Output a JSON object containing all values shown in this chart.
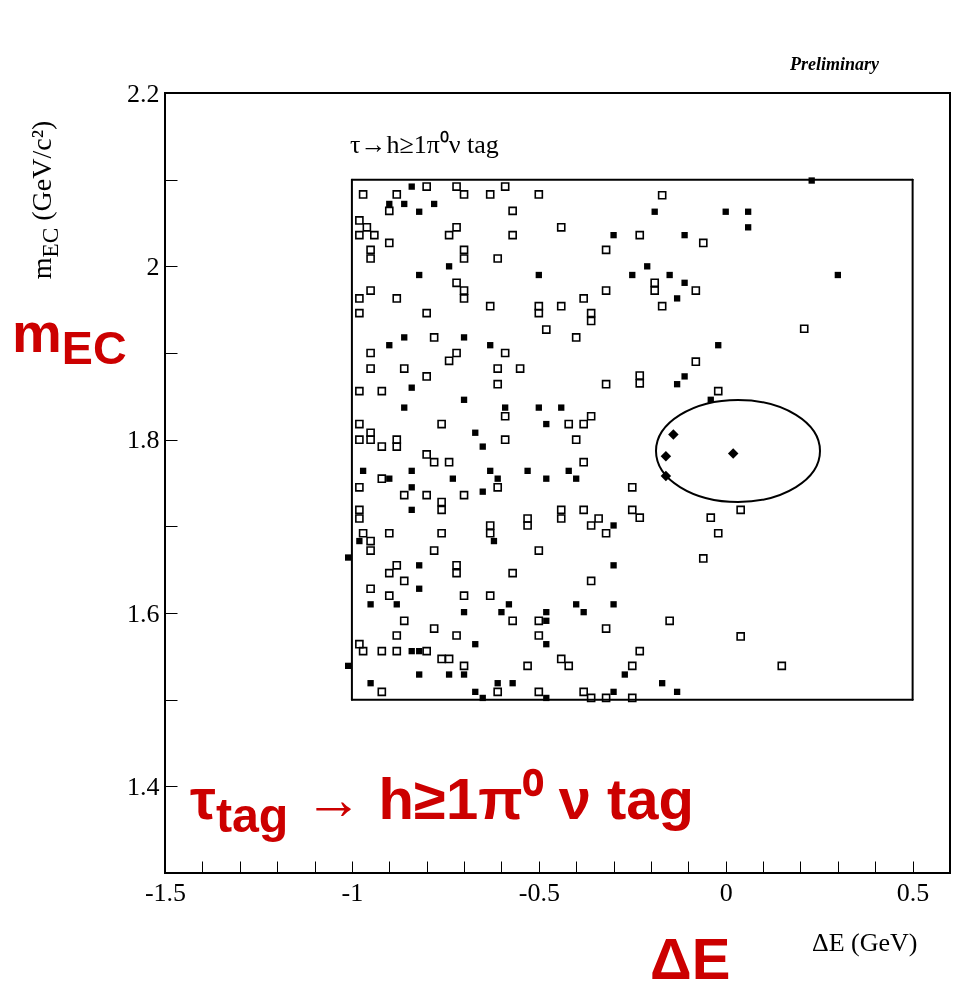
{
  "chart_data": {
    "type": "scatter",
    "xlabel": "ΔE (GeV)",
    "ylabel": "m$_{EC}$ (GeV/c²)",
    "annotations": [
      "τ→h≥1π⁰ν tag",
      "Preliminary",
      "τ$_{tag}$ → h≥1π⁰ ν tag",
      "m$_{EC}$",
      "ΔE"
    ],
    "xlim": [
      -1.5,
      0.6
    ],
    "ylim": [
      1.3,
      2.2
    ],
    "xticks": [
      -1.5,
      {
        "value": -1.4,
        "label": null
      },
      {
        "value": -1.3,
        "label": null
      },
      {
        "value": -1.2,
        "label": null
      },
      {
        "value": -1.1,
        "label": null
      },
      -1,
      {
        "value": -0.9,
        "label": null
      },
      {
        "value": -0.8,
        "label": null
      },
      {
        "value": -0.7,
        "label": null
      },
      {
        "value": -0.6,
        "label": null
      },
      -0.5,
      {
        "value": -0.4,
        "label": null
      },
      {
        "value": -0.3,
        "label": null
      },
      {
        "value": -0.2,
        "label": null
      },
      {
        "value": -0.1,
        "label": null
      },
      0,
      {
        "value": 0.1,
        "label": null
      },
      {
        "value": 0.2,
        "label": null
      },
      {
        "value": 0.3,
        "label": null
      },
      {
        "value": 0.4,
        "label": null
      },
      0.5
    ],
    "yticks": [
      {
        "value": 1.3,
        "label": null
      },
      1.4,
      {
        "value": 1.5,
        "label": null
      },
      1.6,
      {
        "value": 1.7,
        "label": null
      },
      1.8,
      {
        "value": 1.9,
        "label": null
      },
      2,
      {
        "value": 2.1,
        "label": null
      },
      2.2
    ],
    "series": [
      {
        "color": "#000000",
        "marker": "square",
        "x": [
          -0.97,
          -0.88,
          -0.8,
          -0.72,
          -0.7,
          -0.63,
          -0.59,
          -0.5,
          -0.9,
          -0.57,
          -0.98,
          -0.96,
          -0.98,
          -0.94,
          -0.9,
          -0.74,
          -0.72,
          -0.57,
          -0.44,
          -0.32,
          -0.95,
          -0.95,
          -0.7,
          -0.7,
          -0.61,
          -0.72,
          -0.7,
          -0.7,
          -0.95,
          -0.98,
          -0.88,
          -0.63,
          -0.5,
          -0.5,
          -0.44,
          -0.38,
          -0.32,
          -0.36,
          -0.36,
          -0.98,
          -0.8,
          -0.48,
          -0.78,
          -0.4,
          -0.95,
          -0.72,
          -0.74,
          -0.59,
          -0.95,
          -0.86,
          -0.61,
          -0.55,
          -0.8,
          -0.61,
          -0.32,
          -0.98,
          -0.92,
          -0.59,
          -0.36,
          -0.38,
          -0.42,
          -0.98,
          -0.76,
          -0.95,
          -0.17,
          -0.23,
          -0.06,
          -0.19,
          -0.19,
          -0.08,
          -0.17,
          0.21,
          -0.08,
          -0.23,
          -0.23,
          -0.02,
          -0.98,
          -0.95,
          -0.92,
          -0.88,
          -0.88,
          -0.59,
          -0.4,
          -0.8,
          -0.78,
          -0.74,
          -0.38,
          -0.92,
          -0.98,
          -0.86,
          -0.8,
          -0.7,
          -0.61,
          -0.76,
          -0.76,
          -0.98,
          -0.98,
          -0.53,
          -0.53,
          -0.44,
          -0.44,
          -0.38,
          -0.34,
          -0.36,
          -0.97,
          -0.9,
          -0.76,
          -0.63,
          -0.63,
          -0.32,
          -0.95,
          -0.95,
          -0.78,
          -0.5,
          -0.88,
          -0.9,
          -0.72,
          -0.72,
          -0.57,
          -0.86,
          -0.36,
          -0.95,
          -0.9,
          -0.7,
          -0.63,
          -0.86,
          -0.57,
          -0.5,
          -0.88,
          -0.78,
          -0.72,
          -0.5,
          -0.32,
          -0.98,
          -0.97,
          -0.92,
          -0.88,
          -0.8,
          -0.76,
          -0.74,
          -0.44,
          -0.42,
          -0.7,
          -0.53,
          -0.92,
          -0.61,
          -0.5,
          -0.38,
          -0.36,
          -0.32,
          -0.25,
          -0.25,
          -0.25,
          -0.23,
          -0.04,
          0.04,
          -0.02,
          -0.06,
          -0.15,
          0.04,
          -0.23,
          0.15,
          -0.25
        ],
        "values": [
          2.083,
          2.083,
          2.092,
          2.092,
          2.083,
          2.083,
          2.092,
          2.083,
          2.064,
          2.064,
          2.053,
          2.045,
          2.036,
          2.036,
          2.027,
          2.036,
          2.045,
          2.036,
          2.045,
          2.019,
          2.019,
          2.009,
          2.019,
          2.009,
          2.009,
          1.981,
          1.972,
          1.963,
          1.972,
          1.963,
          1.963,
          1.954,
          1.954,
          1.946,
          1.954,
          1.963,
          1.972,
          1.946,
          1.937,
          1.946,
          1.946,
          1.927,
          1.918,
          1.918,
          1.9,
          1.9,
          1.891,
          1.9,
          1.882,
          1.882,
          1.882,
          1.882,
          1.873,
          1.864,
          1.864,
          1.856,
          1.856,
          1.827,
          1.827,
          1.818,
          1.818,
          1.818,
          1.818,
          1.808,
          2.082,
          2.036,
          2.027,
          1.981,
          1.972,
          1.972,
          1.954,
          1.928,
          1.89,
          1.874,
          1.865,
          1.856,
          1.8,
          1.8,
          1.792,
          1.8,
          1.792,
          1.8,
          1.8,
          1.783,
          1.774,
          1.774,
          1.774,
          1.755,
          1.745,
          1.736,
          1.736,
          1.736,
          1.745,
          1.728,
          1.719,
          1.719,
          1.709,
          1.709,
          1.701,
          1.719,
          1.709,
          1.719,
          1.709,
          1.701,
          1.692,
          1.692,
          1.692,
          1.701,
          1.692,
          1.692,
          1.683,
          1.672,
          1.672,
          1.672,
          1.655,
          1.646,
          1.655,
          1.646,
          1.646,
          1.637,
          1.637,
          1.628,
          1.62,
          1.62,
          1.62,
          1.591,
          1.591,
          1.591,
          1.574,
          1.582,
          1.574,
          1.574,
          1.582,
          1.564,
          1.556,
          1.556,
          1.556,
          1.556,
          1.547,
          1.547,
          1.547,
          1.539,
          1.539,
          1.539,
          1.509,
          1.509,
          1.509,
          1.509,
          1.502,
          1.502,
          1.502,
          1.745,
          1.719,
          1.71,
          1.71,
          1.719,
          1.692,
          1.663,
          1.591,
          1.573,
          1.556,
          1.539,
          1.539
        ]
      },
      {
        "color": "#000000",
        "marker": "square",
        "x": [
          -0.84,
          -0.9,
          -0.86,
          -0.78,
          -0.82,
          -0.3,
          -0.74,
          -0.82,
          -0.5,
          -0.86,
          -0.7,
          -0.9,
          -0.63,
          -0.84,
          -0.7,
          -0.86,
          -0.59,
          -0.5,
          -0.44,
          -0.48,
          -0.67,
          0.23,
          -0.19,
          0.0,
          0.06,
          0.06,
          -0.11,
          -0.21,
          -0.25,
          -0.15,
          0.3,
          -0.11,
          -0.13,
          -0.02,
          -0.11,
          -0.13,
          -0.04,
          -0.65,
          -0.97,
          -0.84,
          -0.63,
          -0.53,
          -0.42,
          -0.9,
          -0.73,
          -0.61,
          -0.48,
          -0.4,
          -0.84,
          -0.65,
          -0.84,
          -0.3,
          -0.98,
          -0.62,
          -0.82,
          -0.3,
          -0.82,
          -0.95,
          -0.88,
          -0.58,
          -0.4,
          -0.3,
          -0.7,
          -0.6,
          -0.48,
          -0.38,
          -0.48,
          -0.67,
          -0.48,
          -0.84,
          -0.82,
          -0.82,
          -0.74,
          -0.7,
          -0.27,
          -0.95,
          -0.61,
          -0.57,
          -0.67,
          -0.3,
          -0.65,
          -0.48,
          -1.01,
          -1.01,
          -0.17,
          -0.13
        ],
        "values": [
          2.092,
          2.072,
          2.072,
          2.072,
          2.063,
          2.036,
          2.0,
          1.99,
          1.99,
          1.918,
          1.918,
          1.909,
          1.909,
          1.86,
          1.846,
          1.837,
          1.837,
          1.837,
          1.837,
          1.818,
          1.808,
          2.099,
          2.063,
          2.063,
          2.063,
          2.045,
          2.036,
          2.0,
          1.99,
          1.99,
          1.99,
          1.981,
          1.963,
          1.909,
          1.873,
          1.864,
          1.846,
          1.792,
          1.764,
          1.764,
          1.764,
          1.764,
          1.764,
          1.755,
          1.755,
          1.755,
          1.755,
          1.755,
          1.745,
          1.74,
          1.719,
          1.701,
          1.683,
          1.683,
          1.655,
          1.655,
          1.628,
          1.61,
          1.61,
          1.61,
          1.61,
          1.61,
          1.601,
          1.601,
          1.601,
          1.601,
          1.591,
          1.564,
          1.564,
          1.556,
          1.556,
          1.529,
          1.529,
          1.529,
          1.529,
          1.519,
          1.519,
          1.519,
          1.509,
          1.509,
          1.502,
          1.502,
          1.664,
          1.539,
          1.519,
          1.509
        ]
      },
      {
        "color": "#000000",
        "marker": "diamond",
        "x": [
          -0.14,
          -0.16,
          0.02,
          -0.16
        ],
        "values": [
          1.806,
          1.781,
          1.784,
          1.758
        ]
      },
      {
        "type": "line",
        "color": "#000000",
        "marker": "none",
        "x": [
          -1,
          0.5
        ],
        "values": [
          2.1,
          2.1
        ]
      },
      {
        "type": "line",
        "color": "#000000",
        "marker": "none",
        "x": [
          -1,
          0.5
        ],
        "values": [
          1.5,
          1.5
        ]
      },
      {
        "type": "line",
        "color": "#000000",
        "marker": "none",
        "x": [
          -1,
          -1
        ],
        "values": [
          1.5,
          2.1
        ]
      },
      {
        "type": "line",
        "color": "#000000",
        "marker": "none",
        "x": [
          0.5,
          0.5
        ],
        "values": [
          1.5,
          2.1
        ]
      }
    ]
  }
}
